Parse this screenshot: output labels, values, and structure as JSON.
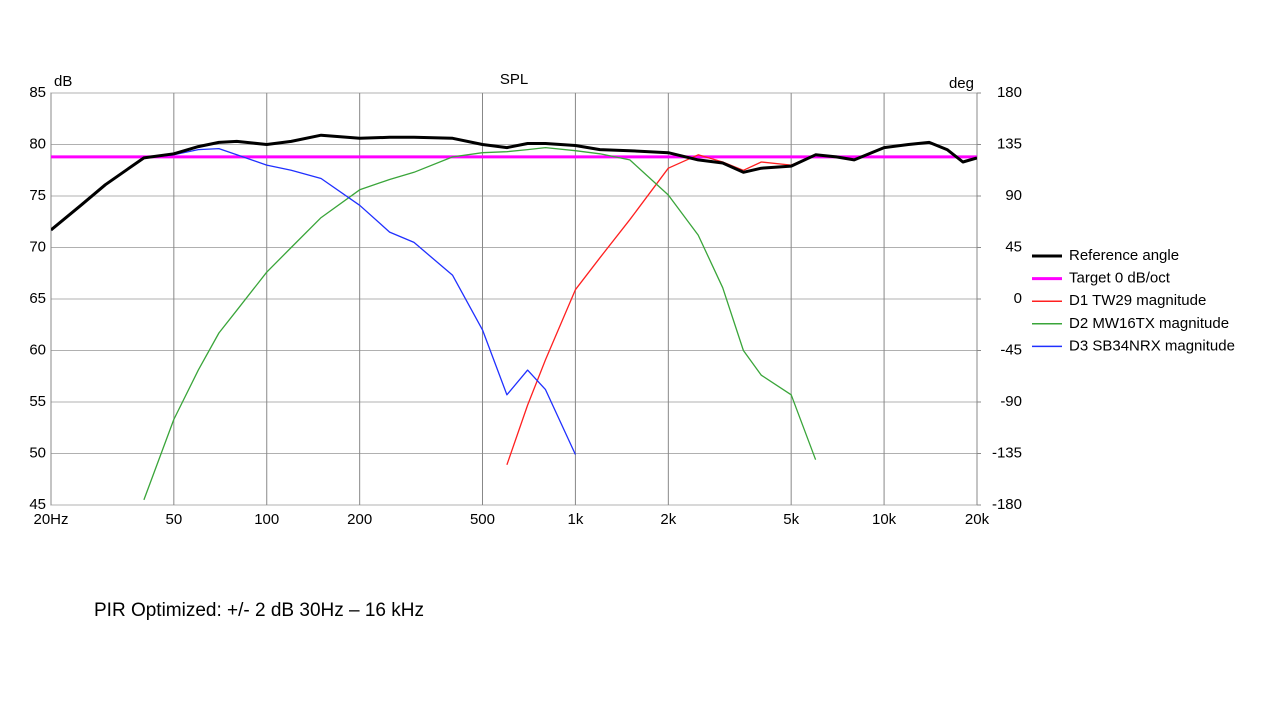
{
  "chart_data": {
    "type": "line",
    "title": "SPL",
    "y_label": "dB",
    "y2_label": "deg",
    "log_x": true,
    "grid": true,
    "legend": "right",
    "xlim": [
      20,
      20000
    ],
    "xticks": [
      {
        "value": 20,
        "label": "20Hz"
      },
      50,
      100,
      200,
      500,
      {
        "value": 1000,
        "label": "1k"
      },
      {
        "value": 2000,
        "label": "2k"
      },
      {
        "value": 5000,
        "label": "5k"
      },
      {
        "value": 10000,
        "label": "10k"
      },
      {
        "value": 20000,
        "label": "20k"
      }
    ],
    "ylim": [
      45,
      85
    ],
    "yticks": [
      45,
      50,
      55,
      60,
      65,
      70,
      75,
      80,
      85
    ],
    "y2lim": [
      -180,
      180
    ],
    "y2ticks": [
      -180,
      -135,
      -90,
      -45,
      0,
      45,
      90,
      135,
      180
    ],
    "x": [
      20,
      25,
      30,
      35,
      40,
      50,
      60,
      70,
      80,
      100,
      120,
      150,
      200,
      250,
      300,
      400,
      500,
      600,
      700,
      800,
      1000,
      1200,
      1500,
      2000,
      2500,
      3000,
      3500,
      4000,
      5000,
      6000,
      7000,
      8000,
      10000,
      12000,
      14000,
      16000,
      18000,
      20000
    ],
    "series": [
      {
        "name": "Reference angle",
        "color": "#000000",
        "width": 3,
        "values": [
          71.7,
          74.1,
          76.1,
          77.5,
          78.7,
          79.1,
          79.8,
          80.2,
          80.3,
          80.0,
          80.3,
          80.9,
          80.6,
          80.7,
          80.7,
          80.6,
          80.0,
          79.7,
          80.1,
          80.1,
          79.9,
          79.5,
          79.4,
          79.2,
          78.5,
          78.2,
          77.3,
          77.7,
          77.9,
          79.0,
          78.8,
          78.5,
          79.7,
          80.0,
          80.2,
          79.5,
          78.3,
          78.7
        ]
      },
      {
        "name": "Target 0 dB/oct",
        "color": "#ff00ff",
        "width": 3,
        "values": [
          78.8,
          78.8,
          78.8,
          78.8,
          78.8,
          78.8,
          78.8,
          78.8,
          78.8,
          78.8,
          78.8,
          78.8,
          78.8,
          78.8,
          78.8,
          78.8,
          78.8,
          78.8,
          78.8,
          78.8,
          78.8,
          78.8,
          78.8,
          78.8,
          78.8,
          78.8,
          78.8,
          78.8,
          78.8,
          78.8,
          78.8,
          78.8,
          78.8,
          78.8,
          78.8,
          78.8,
          78.8,
          78.8
        ]
      },
      {
        "name": "D1 TW29 magnitude",
        "color": "#ff2020",
        "width": 1.3,
        "values": [
          null,
          null,
          null,
          null,
          null,
          null,
          null,
          null,
          null,
          null,
          null,
          null,
          null,
          null,
          null,
          null,
          null,
          48.9,
          54.7,
          59.1,
          65.9,
          69.0,
          72.7,
          77.7,
          79.0,
          78.3,
          77.5,
          78.3,
          78.0,
          79.0,
          78.8,
          78.5,
          79.7,
          80.0,
          80.2,
          79.5,
          78.3,
          78.7
        ]
      },
      {
        "name": "D2 MW16TX magnitude",
        "color": "#3aa53a",
        "width": 1.3,
        "values": [
          null,
          null,
          null,
          null,
          45.5,
          53.3,
          58.1,
          61.7,
          63.9,
          67.6,
          70.0,
          72.9,
          75.6,
          76.6,
          77.3,
          78.8,
          79.2,
          79.3,
          79.5,
          79.7,
          79.4,
          79.1,
          78.5,
          75.1,
          71.2,
          66.1,
          60.0,
          57.6,
          55.7,
          49.4,
          null,
          null,
          null,
          null,
          null,
          null,
          null,
          null
        ]
      },
      {
        "name": "D3 SB34NRX magnitude",
        "color": "#2030ff",
        "width": 1.3,
        "values": [
          71.7,
          74.1,
          76.1,
          77.5,
          78.7,
          79.0,
          79.5,
          79.6,
          79.0,
          78.0,
          77.5,
          76.7,
          74.1,
          71.5,
          70.5,
          67.3,
          62.0,
          55.7,
          58.1,
          56.2,
          49.9,
          null,
          null,
          null,
          null,
          null,
          null,
          null,
          null,
          null,
          null,
          null,
          null,
          null,
          null,
          null,
          null,
          null
        ]
      }
    ]
  },
  "caption": "PIR Optimized:  +/- 2 dB 30Hz – 16 kHz"
}
